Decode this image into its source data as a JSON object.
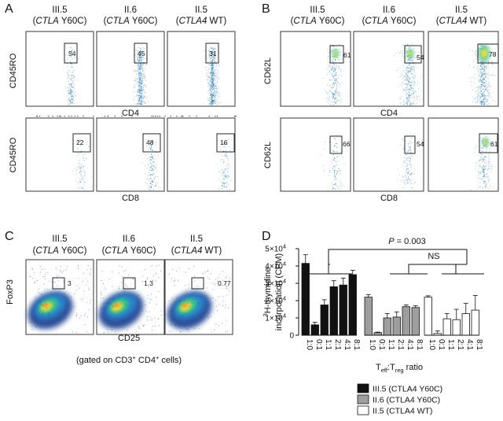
{
  "panels": {
    "A": {
      "letter": "A",
      "samples": [
        {
          "id": "III.5",
          "gene": "CTLA",
          "mut": " Y60C)"
        },
        {
          "id": "II.6",
          "gene": "CTLA",
          "mut": " Y60C)"
        },
        {
          "id": "II.5",
          "gene": "CTLA4",
          "mut": " WT)"
        }
      ],
      "row1_ylabel": "CD45RO",
      "row1_xlabel": "CD4",
      "row1_gates": [
        "54",
        "45",
        "31"
      ],
      "row2_ylabel": "CD45RO",
      "row2_xlabel": "CD8",
      "row2_gates": [
        "22",
        "48",
        "16"
      ]
    },
    "B": {
      "letter": "B",
      "samples": [
        {
          "id": "III.5",
          "gene": "CTLA",
          "mut": " Y60C)"
        },
        {
          "id": "II.6",
          "gene": "CTLA",
          "mut": " Y60C)"
        },
        {
          "id": "II.5",
          "gene": "CTLA4",
          "mut": " WT)"
        }
      ],
      "row1_ylabel": "CD62L",
      "row1_xlabel": "CD4",
      "row1_gates": [
        "61",
        "54",
        "78"
      ],
      "row2_ylabel": "CD62L",
      "row2_xlabel": "CD8",
      "row2_gates": [
        "66",
        "54",
        "61"
      ]
    },
    "C": {
      "letter": "C",
      "samples": [
        {
          "id": "III.5",
          "gene": "CTLA",
          "mut": " Y60C)"
        },
        {
          "id": "II.6",
          "gene": "CTLA",
          "mut": " Y60C)"
        },
        {
          "id": "II.5",
          "gene": "CTLA4",
          "mut": " WT)"
        }
      ],
      "ylabel": "FoxP3",
      "xlabel": "CD25",
      "gates": [
        "3",
        "1.3",
        "0.77"
      ],
      "footnote_pre": "(gated on CD3",
      "footnote_mid": " CD4",
      "footnote_post": " cells)",
      "sup": "+"
    },
    "D": {
      "letter": "D",
      "p_label": "P",
      "p_text": " = 0.003",
      "ns_label": "NS",
      "ylabel_sup": "3",
      "ylabel_rest": "H-thymidine",
      "ylabel_line2": "incorporation (CPM)",
      "xlabel_main": "T",
      "xlabel_eff": "eff",
      "xlabel_colon": ":T",
      "xlabel_reg": "reg",
      "xlabel_tail": " ratio",
      "y_tick_mantissa": [
        "0",
        "1",
        "2",
        "3",
        "4",
        "5"
      ],
      "y_tick_exp": "4"
    }
  },
  "chart_data": {
    "type": "bar",
    "title": "",
    "xlabel": "Teff:Treg ratio",
    "ylabel": "3H-thymidine incorporation (CPM)",
    "ylim": [
      0,
      50000
    ],
    "yticks": [
      0,
      10000,
      20000,
      30000,
      40000,
      50000
    ],
    "categories": [
      "1:0",
      "0:1",
      "1:1",
      "2:1",
      "4:1",
      "8:1"
    ],
    "series": [
      {
        "name": "III.5 (CTLA4 Y60C)",
        "color": "#111111",
        "values": [
          41500,
          6000,
          17500,
          28000,
          29000,
          35000
        ],
        "errors": [
          5000,
          1500,
          3000,
          3500,
          4000,
          2500
        ]
      },
      {
        "name": "II.6 (CTLA4 Y60C)",
        "color": "#9e9e9e",
        "values": [
          22000,
          1500,
          10000,
          10500,
          16500,
          16000
        ],
        "errors": [
          1500,
          300,
          2500,
          3000,
          1000,
          1000
        ]
      },
      {
        "name": "II.5 (CTLA4 WT)",
        "color": "#ffffff",
        "values": [
          22000,
          1000,
          9500,
          9000,
          12500,
          14500
        ],
        "errors": [
          800,
          1500,
          3000,
          6000,
          6000,
          8500
        ]
      }
    ],
    "annotations": [
      "P = 0.003",
      "NS"
    ],
    "legend_position": "bottom"
  }
}
